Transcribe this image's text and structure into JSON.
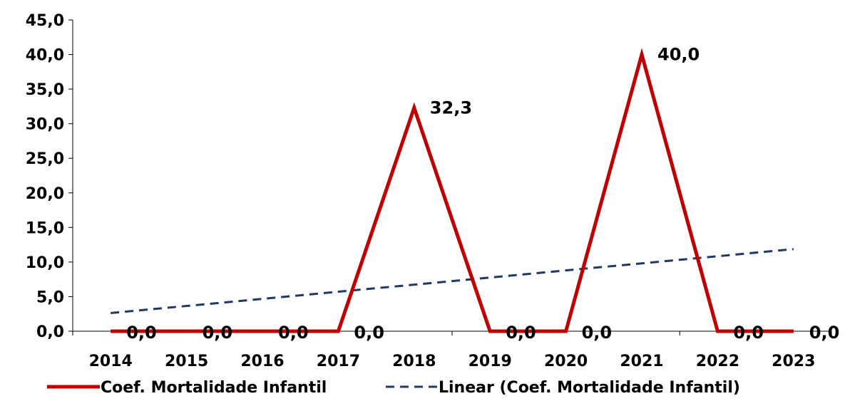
{
  "chart_data": {
    "type": "line",
    "categories": [
      "2014",
      "2015",
      "2016",
      "2017",
      "2018",
      "2019",
      "2020",
      "2021",
      "2022",
      "2023"
    ],
    "series": [
      {
        "name": "Coef. Mortalidade Infantil",
        "values": [
          0.0,
          0.0,
          0.0,
          0.0,
          32.3,
          0.0,
          0.0,
          40.0,
          0.0,
          0.0
        ],
        "data_labels": [
          "0,0",
          "0,0",
          "0,0",
          "0,0",
          "32,3",
          "0,0",
          "0,0",
          "40,0",
          "0,0",
          "0,0"
        ],
        "color": "#c00000",
        "style": "solid"
      },
      {
        "name": "Linear (Coef. Mortalidade Infantil)",
        "trendline_of": "Coef. Mortalidade Infantil",
        "values": [
          2.63,
          3.65,
          4.68,
          5.71,
          6.73,
          7.76,
          8.79,
          9.81,
          10.84,
          11.87
        ],
        "color": "#1f3864",
        "style": "dashed"
      }
    ],
    "y_ticks": [
      "0,0",
      "5,0",
      "10,0",
      "15,0",
      "20,0",
      "25,0",
      "30,0",
      "35,0",
      "40,0",
      "45,0"
    ],
    "ylim": [
      0,
      45
    ],
    "ystep": 5,
    "title": "",
    "xlabel": "",
    "ylabel": "",
    "grid": false,
    "legend_position": "bottom"
  }
}
